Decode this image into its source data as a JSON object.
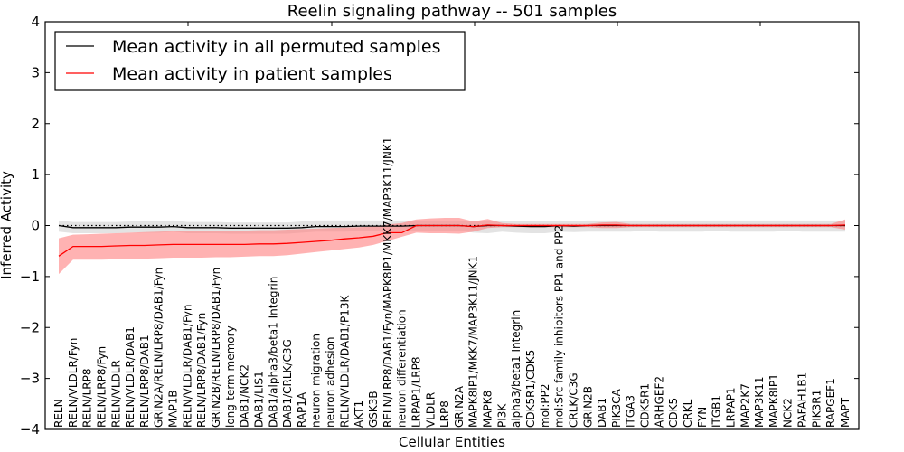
{
  "chart_data": {
    "type": "line",
    "title": "Reelin signaling pathway -- 501 samples",
    "xlabel": "Cellular Entities",
    "ylabel": "Inferred Activity",
    "ylim": [
      -4,
      4
    ],
    "yticks": [
      "−4",
      "−3",
      "−2",
      "−1",
      "0",
      "1",
      "2",
      "3",
      "4"
    ],
    "ytick_values": [
      -4,
      -3,
      -2,
      -1,
      0,
      1,
      2,
      3,
      4
    ],
    "grid": false,
    "zero_line": "dotted",
    "legend": {
      "placement": "top-left",
      "entries": [
        {
          "label": "Mean activity in all permuted samples",
          "color": "#000000"
        },
        {
          "label": "Mean activity in patient samples",
          "color": "#ff0000"
        }
      ]
    },
    "categories": [
      "RELN",
      "RELN/VLDLR/Fyn",
      "RELN/LRP8",
      "RELN/LRP8/Fyn",
      "RELN/VLDLR",
      "RELN/VLDLR/DAB1",
      "RELN/LRP8/DAB1",
      "GRIN2A/RELN/LRP8/DAB1/Fyn",
      "MAP1B",
      "RELN/VLDLR/DAB1/Fyn",
      "RELN/LRP8/DAB1/Fyn",
      "GRIN2B/RELN/LRP8/DAB1/Fyn",
      "long-term memory",
      "DAB1/NCK2",
      "DAB1/LIS1",
      "DAB1/alpha3/beta1 Integrin",
      "DAB1/CRLK/C3G",
      "RAP1A",
      "neuron migration",
      "neuron adhesion",
      "RELN/VLDLR/DAB1/P13K",
      "AKT1",
      "GSK3B",
      "RELN/LRP8/DAB1/Fyn/MAPK8IP1/MKK7/MAP3K11/JNK1",
      "neuron differentiation",
      "LRPAP1/LRP8",
      "VLDLR",
      "LRP8",
      "GRIN2A",
      "MAPK8IP1/MKK7/MAP3K11/JNK1",
      "MAPK8",
      "PI3K",
      "alpha3/beta1 Integrin",
      "CDK5R1/CDK5",
      "mol:PP2",
      "mol:Src family inhibitors PP1 and PP2",
      "CRLK/C3G",
      "GRIN2B",
      "DAB1",
      "PIK3CA",
      "ITGA3",
      "CDK5R1",
      "ARHGEF2",
      "CDK5",
      "CRKL",
      "FYN",
      "ITGB1",
      "LRPAP1",
      "MAP2K7",
      "MAP3K11",
      "MAPK8IP1",
      "NCK2",
      "PAFAH1B1",
      "PIK3R1",
      "RAPGEF1",
      "MAPT"
    ],
    "series": [
      {
        "name": "Mean activity in all permuted samples",
        "color": "#000000",
        "band_color": "#d9d9d9",
        "values": [
          0.0,
          -0.04,
          -0.04,
          -0.04,
          -0.04,
          -0.03,
          -0.03,
          -0.03,
          -0.02,
          -0.04,
          -0.04,
          -0.04,
          -0.05,
          -0.05,
          -0.05,
          -0.05,
          -0.05,
          -0.04,
          -0.02,
          -0.02,
          -0.02,
          -0.01,
          -0.01,
          -0.01,
          -0.01,
          0.0,
          0.0,
          0.0,
          0.0,
          -0.02,
          0.0,
          0.0,
          -0.01,
          -0.02,
          -0.02,
          0.0,
          -0.01,
          0.0,
          0.0,
          0.0,
          0.0,
          0.0,
          0.0,
          0.0,
          0.0,
          0.0,
          0.0,
          0.0,
          0.0,
          0.0,
          0.0,
          0.0,
          0.0,
          0.0,
          0.0,
          0.0
        ],
        "lower": [
          -0.12,
          -0.15,
          -0.15,
          -0.15,
          -0.15,
          -0.14,
          -0.14,
          -0.14,
          -0.12,
          -0.15,
          -0.15,
          -0.15,
          -0.16,
          -0.16,
          -0.16,
          -0.16,
          -0.16,
          -0.14,
          -0.12,
          -0.12,
          -0.12,
          -0.11,
          -0.11,
          -0.11,
          -0.11,
          -0.1,
          -0.1,
          -0.1,
          -0.1,
          -0.14,
          -0.15,
          -0.12,
          -0.14,
          -0.15,
          -0.15,
          -0.12,
          -0.13,
          -0.12,
          -0.12,
          -0.12,
          -0.12,
          -0.1,
          -0.12,
          -0.12,
          -0.12,
          -0.12,
          -0.1,
          -0.12,
          -0.12,
          -0.12,
          -0.12,
          -0.1,
          -0.12,
          -0.12,
          -0.12,
          -0.12
        ],
        "upper": [
          0.1,
          0.07,
          0.07,
          0.07,
          0.07,
          0.08,
          0.08,
          0.09,
          0.1,
          0.07,
          0.07,
          0.07,
          0.06,
          0.06,
          0.06,
          0.06,
          0.06,
          0.08,
          0.1,
          0.1,
          0.1,
          0.1,
          0.1,
          0.1,
          0.1,
          0.1,
          0.1,
          0.1,
          0.1,
          0.08,
          0.1,
          0.1,
          0.09,
          0.08,
          0.08,
          0.1,
          0.09,
          0.1,
          0.1,
          0.1,
          0.1,
          0.1,
          0.1,
          0.1,
          0.1,
          0.1,
          0.1,
          0.1,
          0.1,
          0.1,
          0.1,
          0.1,
          0.1,
          0.1,
          0.1,
          0.1
        ]
      },
      {
        "name": "Mean activity in patient samples",
        "color": "#ff0000",
        "band_color": "#ff7f7f",
        "values": [
          -0.6,
          -0.41,
          -0.41,
          -0.41,
          -0.4,
          -0.39,
          -0.39,
          -0.38,
          -0.37,
          -0.37,
          -0.37,
          -0.37,
          -0.37,
          -0.37,
          -0.36,
          -0.36,
          -0.35,
          -0.33,
          -0.31,
          -0.29,
          -0.26,
          -0.24,
          -0.21,
          -0.14,
          -0.14,
          0.0,
          0.0,
          0.0,
          0.0,
          -0.02,
          0.01,
          0.0,
          0.0,
          0.0,
          0.0,
          0.0,
          0.0,
          0.0,
          0.01,
          0.01,
          0.0,
          0.0,
          0.0,
          0.0,
          0.0,
          0.0,
          0.0,
          0.0,
          0.0,
          0.0,
          0.0,
          0.0,
          0.0,
          0.0,
          0.0,
          0.01
        ],
        "lower": [
          -0.95,
          -0.67,
          -0.67,
          -0.67,
          -0.66,
          -0.65,
          -0.65,
          -0.64,
          -0.63,
          -0.63,
          -0.63,
          -0.62,
          -0.62,
          -0.61,
          -0.6,
          -0.6,
          -0.58,
          -0.55,
          -0.52,
          -0.49,
          -0.46,
          -0.43,
          -0.38,
          -0.3,
          -0.22,
          -0.14,
          -0.15,
          -0.15,
          -0.16,
          -0.12,
          -0.05,
          -0.03,
          -0.03,
          -0.03,
          -0.03,
          -0.03,
          -0.03,
          -0.03,
          -0.05,
          -0.05,
          -0.03,
          -0.03,
          -0.03,
          -0.03,
          -0.03,
          -0.03,
          -0.03,
          -0.03,
          -0.03,
          -0.03,
          -0.03,
          -0.03,
          -0.03,
          -0.03,
          -0.03,
          -0.08
        ],
        "upper": [
          -0.25,
          -0.18,
          -0.17,
          -0.16,
          -0.15,
          -0.14,
          -0.13,
          -0.12,
          -0.11,
          -0.11,
          -0.11,
          -0.1,
          -0.1,
          -0.1,
          -0.09,
          -0.09,
          -0.08,
          -0.07,
          -0.06,
          -0.05,
          -0.04,
          -0.03,
          -0.02,
          0.02,
          0.05,
          0.12,
          0.14,
          0.15,
          0.15,
          0.08,
          0.13,
          0.05,
          0.03,
          0.03,
          0.03,
          0.03,
          0.03,
          0.03,
          0.06,
          0.07,
          0.03,
          0.03,
          0.03,
          0.03,
          0.03,
          0.03,
          0.03,
          0.03,
          0.03,
          0.03,
          0.03,
          0.03,
          0.03,
          0.03,
          0.03,
          0.12
        ]
      }
    ]
  }
}
